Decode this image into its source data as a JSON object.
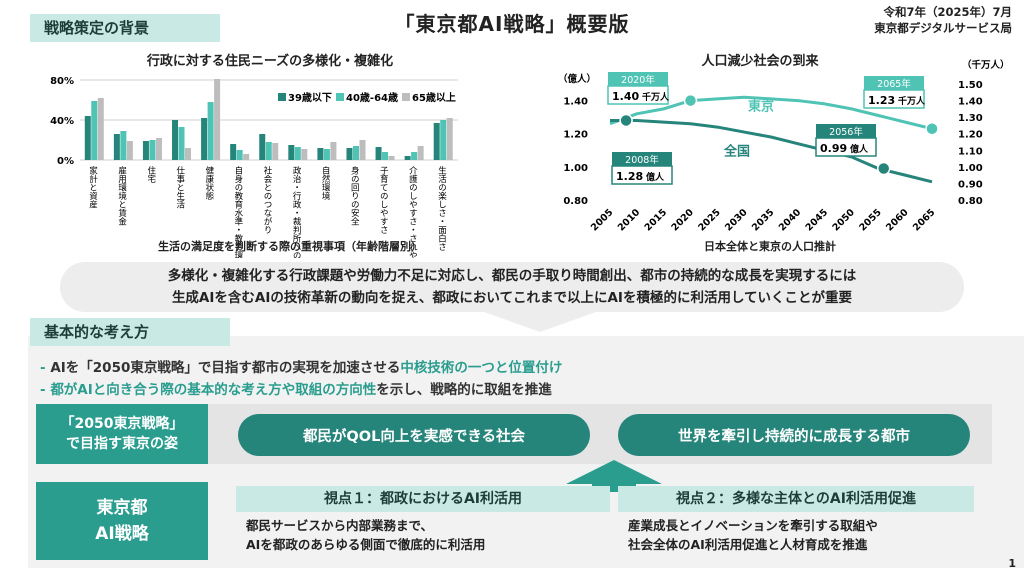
{
  "header": {
    "title": "「東京都AI戦略」概要版",
    "date": "令和7年（2025年）7月",
    "org": "東京都デジタルサービス局"
  },
  "section_background": "戦略策定の背景",
  "section_basic": "基本的な考え方",
  "colors": {
    "teal_dark": "#26857a",
    "teal": "#2a9d8f",
    "teal_light": "#4fc3b4",
    "mint": "#c9eae4",
    "gray_series": "#bdbdbd"
  },
  "chart_data": [
    {
      "type": "bar",
      "title": "行政に対する住民ニーズの多様化・複雑化",
      "xlabel": "生活の満足度を判断する際の重視事項（年齢階層別）",
      "ylim": [
        0,
        80
      ],
      "yticks": [
        "0%",
        "40%",
        "80%"
      ],
      "legend_position": "top-right",
      "categories": [
        "家計と資産",
        "雇用環境と賃金",
        "住宅",
        "仕事と生活",
        "健康状態",
        "自身の教育水準・教育環境",
        "社会とのつながり",
        "政治・行政・裁判所への信頼性",
        "自然環境",
        "身の回りの安全",
        "子育てのしやすさ",
        "介護のしやすさ・されやすさ",
        "生活の楽しさ・面白さ"
      ],
      "series": [
        {
          "name": "39歳以下",
          "values": [
            44,
            26,
            19,
            40,
            42,
            16,
            26,
            15,
            12,
            12,
            13,
            4,
            37
          ]
        },
        {
          "name": "40歳-64歳",
          "values": [
            59,
            29,
            20,
            33,
            58,
            10,
            18,
            13,
            11,
            14,
            8,
            8,
            40
          ]
        },
        {
          "name": "65歳以上",
          "values": [
            62,
            19,
            22,
            12,
            81,
            6,
            17,
            11,
            18,
            20,
            4,
            14,
            42
          ]
        }
      ]
    },
    {
      "type": "line",
      "title": "人口減少社会の到来",
      "xlabel": "日本全体と東京の人口推計",
      "x": [
        2005,
        2010,
        2015,
        2020,
        2025,
        2030,
        2035,
        2040,
        2045,
        2050,
        2055,
        2060,
        2065
      ],
      "left_axis": {
        "unit": "（億人）",
        "ylim": [
          0.8,
          1.5
        ],
        "ticks": [
          "0.80",
          "1.00",
          "1.20",
          "1.40"
        ]
      },
      "right_axis": {
        "unit": "（千万人）",
        "ylim": [
          0.8,
          1.5
        ],
        "ticks": [
          "0.80",
          "0.90",
          "1.00",
          "1.10",
          "1.20",
          "1.30",
          "1.40",
          "1.50"
        ]
      },
      "series": [
        {
          "name": "東京",
          "axis": "right",
          "values": [
            1.26,
            1.32,
            1.35,
            1.4,
            1.41,
            1.42,
            1.41,
            1.4,
            1.38,
            1.35,
            1.31,
            1.27,
            1.23
          ]
        },
        {
          "name": "全国",
          "axis": "left",
          "values": [
            1.28,
            1.28,
            1.27,
            1.26,
            1.24,
            1.21,
            1.18,
            1.14,
            1.1,
            1.06,
            0.99,
            0.95,
            0.91
          ]
        }
      ],
      "callouts": [
        {
          "year": "2020年",
          "value": "1.40",
          "unit": "千万人"
        },
        {
          "year": "2065年",
          "value": "1.23",
          "unit": "千万人"
        },
        {
          "year": "2008年",
          "value": "1.28",
          "unit": "億人"
        },
        {
          "year": "2056年",
          "value": "0.99",
          "unit": "億人"
        }
      ]
    }
  ],
  "banner": {
    "line1": "多様化・複雑化する行政課題や労働力不足に対応し、都民の手取り時間創出、都市の持続的な成長を実現するには",
    "line2": "生成AIを含むAIの技術革新の動向を捉え、都政においてこれまで以上にAIを積極的に利活用していくことが重要"
  },
  "bullets": {
    "b1_a": "AIを「2050東京戦略」で目指す都市の実現を加速させる",
    "b1_b": "中核技術の一つと位置付け",
    "b2_a": "都がAIと向き合う際の基本的な考え方や取組の方向性",
    "b2_b": "を示し、戦略的に取組を推進",
    "dash": "-"
  },
  "vision": {
    "label_line1": "「2050東京戦略」",
    "label_line2": "で目指す東京の姿",
    "pill1": "都民がQOL向上を実感できる社会",
    "pill2": "世界を牽引し持続的に成長する都市"
  },
  "strategy": {
    "label_line1": "東京都",
    "label_line2": "AI戦略",
    "view1_title": "視点１：都政におけるAI利活用",
    "view1_text1": "都民サービスから内部業務まで、",
    "view1_text2": "AIを都政のあらゆる側面で徹底的に利活用",
    "view2_title": "視点２：多様な主体とのAI利活用促進",
    "view2_text1": "産業成長とイノベーションを牽引する取組や",
    "view2_text2": "社会全体のAI利活用促進と人材育成を推進"
  },
  "page_number": "1"
}
